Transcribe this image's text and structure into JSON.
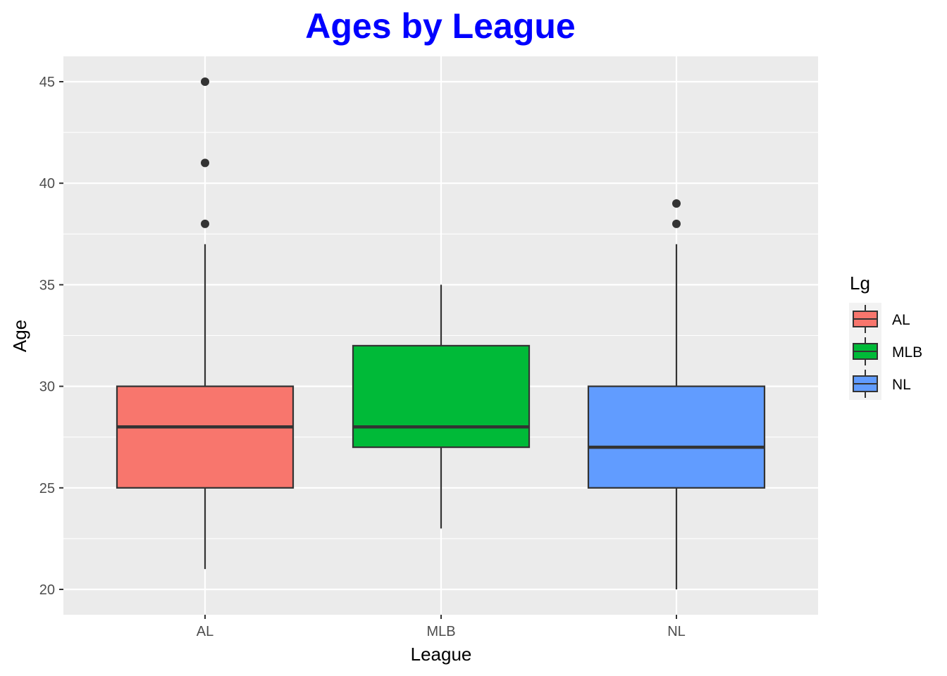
{
  "chart_data": {
    "type": "box",
    "title": "Ages by League",
    "xlabel": "League",
    "ylabel": "Age",
    "ylim": [
      18.5,
      46.3
    ],
    "yticks": [
      20,
      25,
      30,
      35,
      40,
      45
    ],
    "categories": [
      "AL",
      "MLB",
      "NL"
    ],
    "series": [
      {
        "category": "AL",
        "whisker_low": 21,
        "q1": 25,
        "median": 28,
        "q3": 30,
        "whisker_high": 37,
        "outliers": [
          38,
          41,
          45
        ],
        "color": "#F8766D"
      },
      {
        "category": "MLB",
        "whisker_low": 23,
        "q1": 27,
        "median": 28,
        "q3": 32,
        "whisker_high": 35,
        "outliers": [],
        "color": "#00BA38"
      },
      {
        "category": "NL",
        "whisker_low": 20,
        "q1": 25,
        "median": 27,
        "q3": 30,
        "whisker_high": 37,
        "outliers": [
          38,
          39
        ],
        "color": "#619CFF"
      }
    ],
    "grid": true,
    "panel_background": "#EBEBEB",
    "legend": {
      "title": "Lg",
      "position": "right",
      "entries": [
        {
          "label": "AL",
          "color": "#F8766D"
        },
        {
          "label": "MLB",
          "color": "#00BA38"
        },
        {
          "label": "NL",
          "color": "#619CFF"
        }
      ]
    },
    "title_color": "#0000FF"
  }
}
